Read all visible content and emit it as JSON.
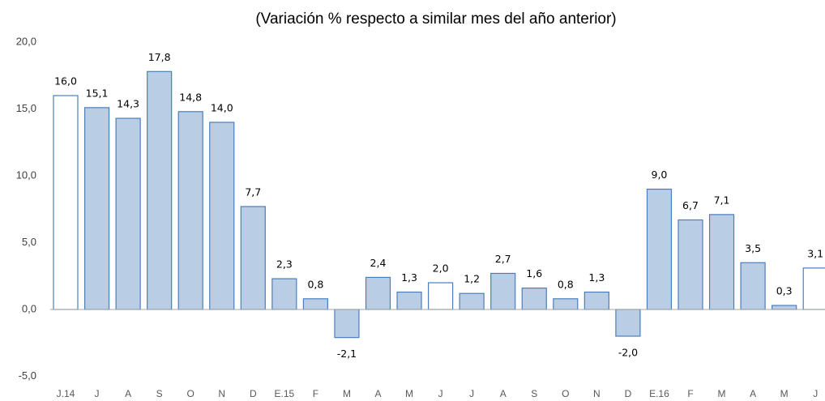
{
  "chart_data": {
    "type": "bar",
    "title": "(Variación % respecto a similar mes del año anterior)",
    "categories": [
      "J.14",
      "J",
      "A",
      "S",
      "O",
      "N",
      "D",
      "E.15",
      "F",
      "M",
      "A",
      "M",
      "J",
      "J",
      "A",
      "S",
      "O",
      "N",
      "D",
      "E.16",
      "F",
      "M",
      "A",
      "M",
      "J"
    ],
    "values": [
      16.0,
      15.1,
      14.3,
      17.8,
      14.8,
      14.0,
      7.7,
      2.3,
      0.8,
      -2.1,
      2.4,
      1.3,
      2.0,
      1.2,
      2.7,
      1.6,
      0.8,
      1.3,
      -2.0,
      9.0,
      6.7,
      7.1,
      3.5,
      0.3,
      3.1
    ],
    "value_labels": [
      "16,0",
      "15,1",
      "14,3",
      "17,8",
      "14,8",
      "14,0",
      "7,7",
      "2,3",
      "0,8",
      "-2,1",
      "2,4",
      "1,3",
      "2,0",
      "1,2",
      "2,7",
      "1,6",
      "0,8",
      "1,3",
      "-2,0",
      "9,0",
      "6,7",
      "7,1",
      "3,5",
      "0,3",
      "3,1"
    ],
    "colors": [
      "#ffffff",
      "#b9cde5",
      "#b9cde5",
      "#b9cde5",
      "#b9cde5",
      "#b9cde5",
      "#b9cde5",
      "#b9cde5",
      "#b9cde5",
      "#b9cde5",
      "#b9cde5",
      "#b9cde5",
      "#ffffff",
      "#b9cde5",
      "#b9cde5",
      "#b9cde5",
      "#b9cde5",
      "#b9cde5",
      "#b9cde5",
      "#b9cde5",
      "#b9cde5",
      "#b9cde5",
      "#b9cde5",
      "#b9cde5",
      "#ffffff"
    ],
    "edge_color": "#4a7ebb",
    "ylim": [
      -5,
      20
    ],
    "yticks": [
      {
        "value": -5,
        "label": "-5,0"
      },
      {
        "value": 0,
        "label": "0,0"
      },
      {
        "value": 5,
        "label": "5,0"
      },
      {
        "value": 10,
        "label": "10,0"
      },
      {
        "value": 15,
        "label": "15,0"
      },
      {
        "value": 20,
        "label": "20,0"
      }
    ],
    "grid": false
  }
}
